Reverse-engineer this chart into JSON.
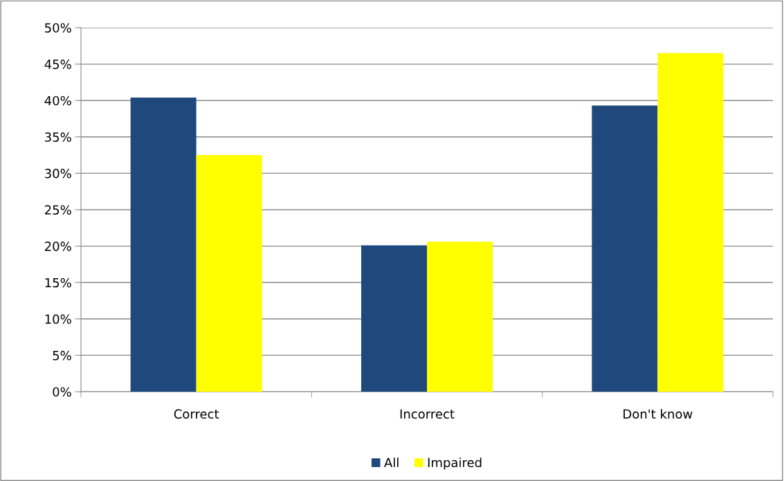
{
  "chart_data": {
    "type": "bar",
    "categories": [
      "Correct",
      "Incorrect",
      "Don't know"
    ],
    "series": [
      {
        "name": "All",
        "color": "#1f497d",
        "values": [
          40.4,
          20.1,
          39.3
        ]
      },
      {
        "name": "Impaired",
        "color": "#ffff00",
        "values": [
          32.5,
          20.6,
          46.5
        ]
      }
    ],
    "ylim": [
      0,
      50
    ],
    "yticks": [
      {
        "value": 0,
        "label": "0%"
      },
      {
        "value": 5,
        "label": "5%"
      },
      {
        "value": 10,
        "label": "10%"
      },
      {
        "value": 15,
        "label": "15%"
      },
      {
        "value": 20,
        "label": "20%"
      },
      {
        "value": 25,
        "label": "25%"
      },
      {
        "value": 30,
        "label": "30%"
      },
      {
        "value": 35,
        "label": "35%"
      },
      {
        "value": 40,
        "label": "40%"
      },
      {
        "value": 45,
        "label": "45%"
      },
      {
        "value": 50,
        "label": "50%"
      }
    ],
    "grid": "y",
    "legend": "bottom"
  }
}
